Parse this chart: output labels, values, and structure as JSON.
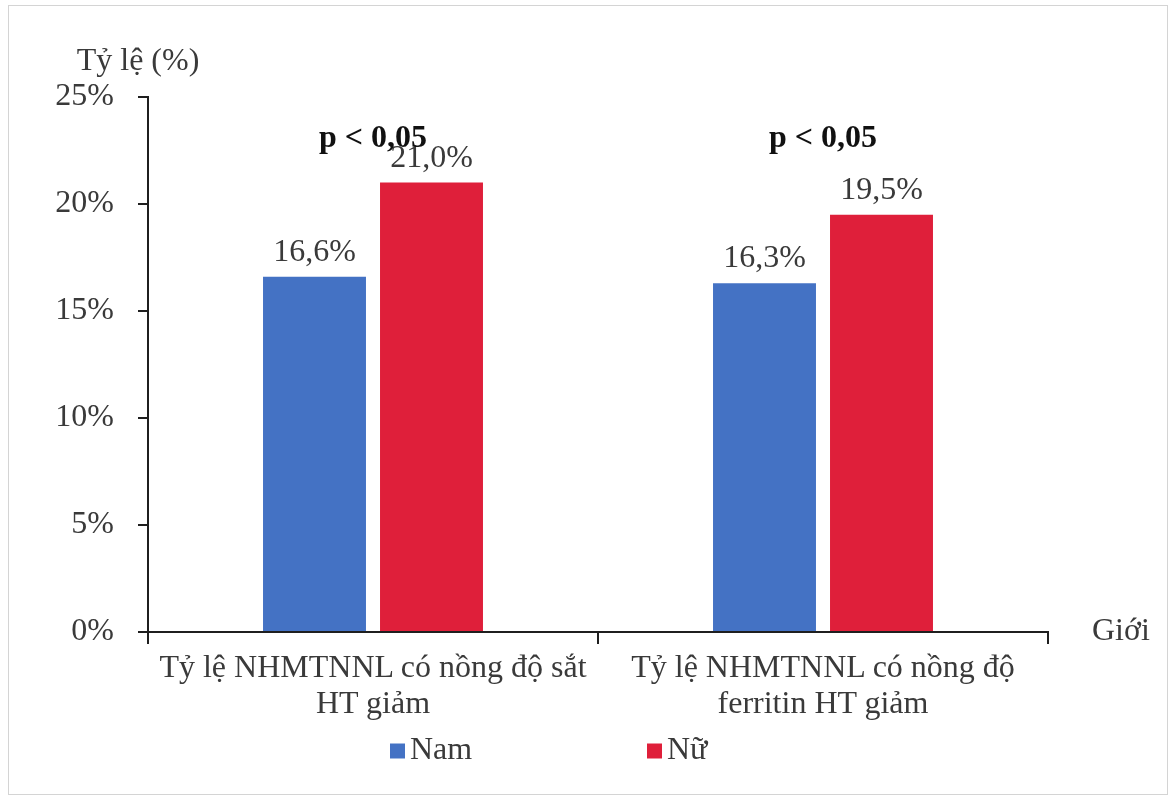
{
  "chart_data": {
    "type": "bar",
    "ylabel": "Tỷ lệ (%)",
    "xlabel": "Giới",
    "categories": [
      "Tỷ lệ NHMTNNL có nồng độ sắt HT giảm",
      "Tỷ lệ NHMTNNL có nồng độ ferritin HT giảm"
    ],
    "series": [
      {
        "name": "Nam",
        "color": "#4472c4",
        "values": [
          16.6,
          16.3
        ],
        "value_labels": [
          "16,6%",
          "16,3%"
        ]
      },
      {
        "name": "Nữ",
        "color": "#df1f3a",
        "values": [
          21.0,
          19.5
        ],
        "value_labels": [
          "21,0%",
          "19,5%"
        ]
      }
    ],
    "ylim": [
      0,
      25
    ],
    "yticks": [
      {
        "value": 0,
        "label": "0%"
      },
      {
        "value": 5,
        "label": "5%"
      },
      {
        "value": 10,
        "label": "10%"
      },
      {
        "value": 15,
        "label": "15%"
      },
      {
        "value": 20,
        "label": "20%"
      },
      {
        "value": 25,
        "label": "25%"
      }
    ],
    "legend": "bottom",
    "annotations": [
      "p < 0,05",
      "p < 0,05"
    ]
  }
}
